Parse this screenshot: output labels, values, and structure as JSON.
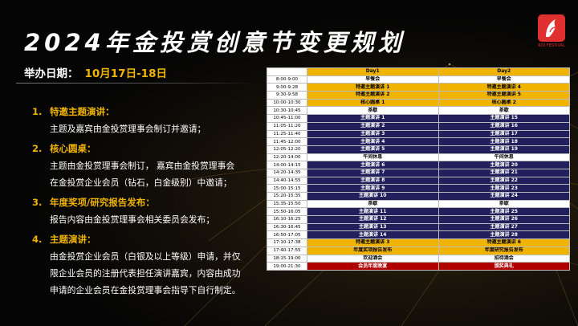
{
  "title": "2024年金投赏创意节变更规划",
  "logo": {
    "icon": "phoenix-icon",
    "text": "ROI FESTIVAL"
  },
  "event_date": {
    "label": "举办日期：",
    "value": "10月17日-18日"
  },
  "notes": [
    {
      "num": "1.",
      "head": "特邀主题演讲：",
      "lines": [
        "主题及嘉宾由金投赏理事会制订并邀请；"
      ]
    },
    {
      "num": "2.",
      "head": "核心圆桌：",
      "lines": [
        "主题由金投赏理事会制订， 嘉宾由金投赏理事会",
        "在金投赏企业会员（钻石，白金级别）中邀请；"
      ]
    },
    {
      "num": "3.",
      "head": "年度奖项/研究报告发布：",
      "lines": [
        "报告内容由金投赏理事会相关委员会发布；"
      ]
    },
    {
      "num": "4.",
      "head": "主题演讲：",
      "lines": [
        "由金投赏企业会员（白银及以上等级）申请，并仅",
        "限企业会员的注册代表担任演讲嘉宾，内容由成功",
        "申请的企业会员在金投赏理事会指导下自行制定。"
      ]
    }
  ],
  "schedule": {
    "headers": [
      "",
      "Day1",
      "Day2"
    ],
    "rows": [
      {
        "time": "8:00-9:00",
        "d1": "早餐会",
        "d2": "早餐会",
        "c1": "white",
        "c2": "white"
      },
      {
        "time": "9:00-9:28",
        "d1": "特邀主题演讲 1",
        "d2": "特邀主题演讲 4",
        "c1": "gold",
        "c2": "gold"
      },
      {
        "time": "9:30-9:58",
        "d1": "特邀主题演讲 2",
        "d2": "特邀主题演讲 5",
        "c1": "gold",
        "c2": "gold"
      },
      {
        "time": "10:00-10:30",
        "d1": "核心圆桌 1",
        "d2": "核心圆桌 2",
        "c1": "gold",
        "c2": "gold"
      },
      {
        "time": "10:30-10:45",
        "d1": "茶歇",
        "d2": "茶歇",
        "c1": "white",
        "c2": "white"
      },
      {
        "time": "10:45-11:00",
        "d1": "主题演讲 1",
        "d2": "主题演讲 15",
        "c1": "navy",
        "c2": "navy"
      },
      {
        "time": "11:05-11:20",
        "d1": "主题演讲 2",
        "d2": "主题演讲 16",
        "c1": "navy",
        "c2": "navy"
      },
      {
        "time": "11:25-11:40",
        "d1": "主题演讲 3",
        "d2": "主题演讲 17",
        "c1": "navy",
        "c2": "navy"
      },
      {
        "time": "11:45-12:00",
        "d1": "主题演讲 4",
        "d2": "主题演讲 18",
        "c1": "navy",
        "c2": "navy"
      },
      {
        "time": "12:05-12:20",
        "d1": "主题演讲 5",
        "d2": "主题演讲 19",
        "c1": "navy",
        "c2": "navy"
      },
      {
        "time": "12:20-14:00",
        "d1": "午间休息",
        "d2": "午间休息",
        "c1": "white",
        "c2": "white"
      },
      {
        "time": "14:00-14:15",
        "d1": "主题演讲 6",
        "d2": "主题演讲 20",
        "c1": "navy",
        "c2": "navy"
      },
      {
        "time": "14:20-14:35",
        "d1": "主题演讲 7",
        "d2": "主题演讲 21",
        "c1": "navy",
        "c2": "navy"
      },
      {
        "time": "14:40-14:55",
        "d1": "主题演讲 8",
        "d2": "主题演讲 22",
        "c1": "navy",
        "c2": "navy"
      },
      {
        "time": "15:00-15:15",
        "d1": "主题演讲 9",
        "d2": "主题演讲 23",
        "c1": "navy",
        "c2": "navy"
      },
      {
        "time": "15:20-15:35",
        "d1": "主题演讲 10",
        "d2": "主题演讲 24",
        "c1": "navy",
        "c2": "navy"
      },
      {
        "time": "15:35-15:50",
        "d1": "茶歇",
        "d2": "茶歇",
        "c1": "white",
        "c2": "white"
      },
      {
        "time": "15:50-16:05",
        "d1": "主题演讲 11",
        "d2": "主题演讲 25",
        "c1": "navy",
        "c2": "navy"
      },
      {
        "time": "16:10-16:25",
        "d1": "主题演讲 12",
        "d2": "主题演讲 26",
        "c1": "navy",
        "c2": "navy"
      },
      {
        "time": "16:30-16:45",
        "d1": "主题演讲 13",
        "d2": "主题演讲 27",
        "c1": "navy",
        "c2": "navy"
      },
      {
        "time": "16:50-17:05",
        "d1": "主题演讲 14",
        "d2": "主题演讲 28",
        "c1": "navy",
        "c2": "navy"
      },
      {
        "time": "17:10-17:38",
        "d1": "特邀主题演讲 3",
        "d2": "特邀主题演讲 6",
        "c1": "gold",
        "c2": "gold"
      },
      {
        "time": "17:40-17:55",
        "d1": "年度奖项报告发布",
        "d2": "年度研究报告发布",
        "c1": "gold",
        "c2": "gold"
      },
      {
        "time": "18:15-19:00",
        "d1": "欢迎酒会",
        "d2": "招待酒会",
        "c1": "white",
        "c2": "white"
      },
      {
        "time": "19:00-21:30",
        "d1": "会员年度晚宴",
        "d2": "颁奖典礼",
        "c1": "red",
        "c2": "red"
      }
    ]
  },
  "colors": {
    "gold": "#f0b400",
    "navy": "#22205c",
    "red": "#b00000",
    "logo_red": "#e03030"
  }
}
